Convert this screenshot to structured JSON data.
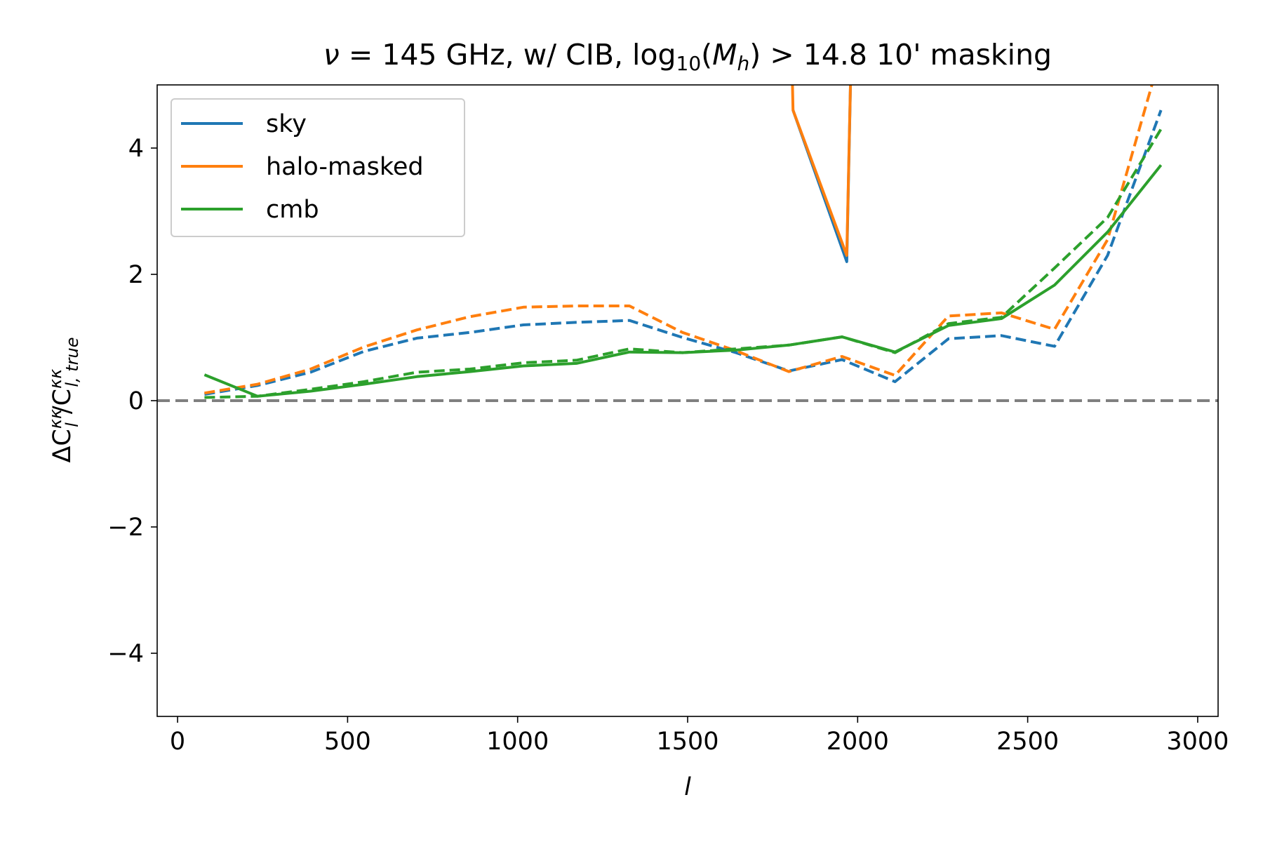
{
  "chart_data": {
    "type": "line",
    "title": {
      "nu": "ν",
      "eq": " = 145 GHz, w/ CIB, log",
      "sub": "10",
      "paren_open": "(",
      "m": "M",
      "msub": "h",
      "rest": ") > 14.8 10' masking"
    },
    "xlabel": "l",
    "ylabel": {
      "delta": "ΔC",
      "sup1": "κκ",
      "sub1": "l",
      "slash": "/C",
      "sup2": "κκ",
      "sub2": "l, true"
    },
    "xlim": [
      -60,
      3060
    ],
    "ylim": [
      -5,
      5
    ],
    "xticks": [
      0,
      500,
      1000,
      1500,
      2000,
      2500,
      3000
    ],
    "xtick_labels": [
      "0",
      "500",
      "1000",
      "1500",
      "2000",
      "2500",
      "3000"
    ],
    "yticks": [
      -4,
      -2,
      0,
      2,
      4
    ],
    "ytick_labels": [
      "−4",
      "−2",
      "0",
      "2",
      "4"
    ],
    "reference_line": {
      "y": 0,
      "style": "dashed",
      "color": "#808080"
    },
    "legend": {
      "location": "upper left"
    },
    "x": [
      79,
      235,
      391,
      548,
      704,
      860,
      1017,
      1173,
      1329,
      1485,
      1642,
      1798,
      1954,
      2110,
      2267,
      2423,
      2579,
      2735,
      2892
    ],
    "series": [
      {
        "name": "sky",
        "color": "#1f77b4",
        "style": "solid",
        "in_legend": true,
        "x": [
          1810,
          1968,
          1982
        ],
        "values": [
          4.6,
          2.2,
          5.8
        ]
      },
      {
        "name": "halo-masked",
        "color": "#ff7f0e",
        "style": "solid",
        "in_legend": true,
        "x": [
          1805,
          1810,
          1968,
          1982
        ],
        "values": [
          5.8,
          4.6,
          2.3,
          5.8
        ]
      },
      {
        "name": "cmb",
        "color": "#2ca02c",
        "style": "solid",
        "in_legend": true,
        "values": [
          0.41,
          0.07,
          0.15,
          0.26,
          0.38,
          0.46,
          0.55,
          0.59,
          0.77,
          0.76,
          0.8,
          0.88,
          1.01,
          0.77,
          1.19,
          1.3,
          1.83,
          2.67,
          3.73
        ]
      },
      {
        "name": "sky (dashed)",
        "color": "#1f77b4",
        "style": "dashed",
        "in_legend": false,
        "values": [
          0.1,
          0.24,
          0.45,
          0.78,
          0.99,
          1.08,
          1.2,
          1.24,
          1.27,
          1.0,
          0.76,
          0.47,
          0.65,
          0.3,
          0.98,
          1.03,
          0.86,
          2.3,
          4.6
        ]
      },
      {
        "name": "halo-masked (dashed)",
        "color": "#ff7f0e",
        "style": "dashed",
        "in_legend": false,
        "values": [
          0.12,
          0.26,
          0.5,
          0.85,
          1.12,
          1.33,
          1.48,
          1.5,
          1.5,
          1.08,
          0.79,
          0.46,
          0.7,
          0.4,
          1.34,
          1.39,
          1.13,
          2.55,
          5.5
        ]
      },
      {
        "name": "cmb (dashed)",
        "color": "#2ca02c",
        "style": "dashed",
        "in_legend": false,
        "values": [
          0.05,
          0.07,
          0.18,
          0.3,
          0.45,
          0.5,
          0.6,
          0.64,
          0.82,
          0.76,
          0.82,
          0.88,
          1.01,
          0.76,
          1.22,
          1.32,
          2.1,
          2.9,
          4.3
        ]
      }
    ]
  }
}
